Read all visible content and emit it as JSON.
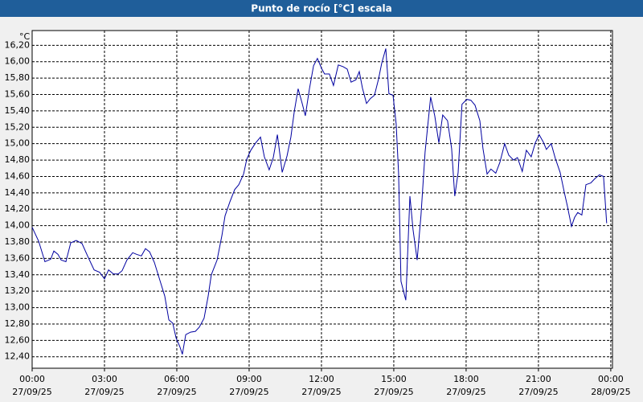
{
  "chart_data": {
    "type": "line",
    "title": "Punto de rocío [°C] escala",
    "y_label": "°C",
    "xlim": [
      0,
      24.07
    ],
    "ylim": [
      12.26,
      16.38
    ],
    "grid": true,
    "xticks": [
      {
        "value": 0,
        "label": "00:00\n27/09/25"
      },
      {
        "value": 3,
        "label": "03:00\n27/09/25"
      },
      {
        "value": 6,
        "label": "06:00\n27/09/25"
      },
      {
        "value": 9,
        "label": "09:00\n27/09/25"
      },
      {
        "value": 12,
        "label": "12:00\n27/09/25"
      },
      {
        "value": 15,
        "label": "15:00\n27/09/25"
      },
      {
        "value": 18,
        "label": "18:00\n27/09/25"
      },
      {
        "value": 21,
        "label": "21:00\n27/09/25"
      },
      {
        "value": 24,
        "label": "00:00\n28/09/25"
      }
    ],
    "yticks": [
      {
        "value": 12.4,
        "label": "12,40"
      },
      {
        "value": 12.6,
        "label": "12,60"
      },
      {
        "value": 12.8,
        "label": "12,80"
      },
      {
        "value": 13.0,
        "label": "13,00"
      },
      {
        "value": 13.2,
        "label": "13,20"
      },
      {
        "value": 13.4,
        "label": "13,40"
      },
      {
        "value": 13.6,
        "label": "13,60"
      },
      {
        "value": 13.8,
        "label": "13,80"
      },
      {
        "value": 14.0,
        "label": "14,00"
      },
      {
        "value": 14.2,
        "label": "14,20"
      },
      {
        "value": 14.4,
        "label": "14,40"
      },
      {
        "value": 14.6,
        "label": "14,60"
      },
      {
        "value": 14.8,
        "label": "14,80"
      },
      {
        "value": 15.0,
        "label": "15,00"
      },
      {
        "value": 15.2,
        "label": "15,20"
      },
      {
        "value": 15.4,
        "label": "15,40"
      },
      {
        "value": 15.6,
        "label": "15,60"
      },
      {
        "value": 15.8,
        "label": "15,80"
      },
      {
        "value": 16.0,
        "label": "16,00"
      },
      {
        "value": 16.2,
        "label": "16,20"
      }
    ],
    "x": [
      0,
      0.27,
      0.53,
      0.77,
      0.9,
      1.07,
      1.2,
      1.4,
      1.6,
      1.83,
      2.07,
      2.33,
      2.57,
      2.8,
      3,
      3.17,
      3.37,
      3.57,
      3.73,
      3.93,
      4.17,
      4.33,
      4.53,
      4.7,
      4.87,
      5.07,
      5.3,
      5.5,
      5.67,
      5.83,
      5.97,
      6.13,
      6.23,
      6.37,
      6.57,
      6.77,
      6.93,
      7.13,
      7.3,
      7.43,
      7.67,
      7.87,
      8,
      8.2,
      8.4,
      8.57,
      8.77,
      8.9,
      9.07,
      9.27,
      9.47,
      9.63,
      9.83,
      10,
      10.17,
      10.37,
      10.57,
      10.73,
      10.87,
      11.03,
      11.2,
      11.33,
      11.5,
      11.67,
      11.83,
      12,
      12.13,
      12.33,
      12.5,
      12.7,
      12.9,
      13.07,
      13.23,
      13.43,
      13.57,
      13.7,
      13.87,
      14.03,
      14.2,
      14.37,
      14.5,
      14.67,
      14.8,
      14.97,
      15.1,
      15.2,
      15.3,
      15.5,
      15.67,
      15.8,
      15.97,
      16.13,
      16.3,
      16.53,
      16.7,
      16.87,
      17.03,
      17.23,
      17.4,
      17.53,
      17.67,
      17.83,
      18.03,
      18.2,
      18.37,
      18.57,
      18.7,
      18.87,
      19.03,
      19.23,
      19.4,
      19.6,
      19.77,
      19.97,
      20.13,
      20.33,
      20.5,
      20.7,
      20.87,
      21.03,
      21.2,
      21.33,
      21.53,
      21.7,
      21.9,
      22.07,
      22.2,
      22.37,
      22.5,
      22.63,
      22.8,
      22.97,
      23.17,
      23.33,
      23.53,
      23.7,
      23.83
    ],
    "series": [
      {
        "name": "Punto de rocío",
        "color": "#0000a0",
        "values": [
          13.98,
          13.81,
          13.56,
          13.59,
          13.69,
          13.65,
          13.58,
          13.56,
          13.79,
          13.82,
          13.78,
          13.61,
          13.46,
          13.43,
          13.35,
          13.46,
          13.41,
          13.41,
          13.45,
          13.58,
          13.67,
          13.65,
          13.63,
          13.72,
          13.68,
          13.55,
          13.33,
          13.14,
          12.85,
          12.81,
          12.63,
          12.52,
          12.43,
          12.67,
          12.7,
          12.71,
          12.76,
          12.87,
          13.14,
          13.4,
          13.58,
          13.88,
          14.12,
          14.29,
          14.44,
          14.5,
          14.63,
          14.81,
          14.92,
          15.01,
          15.08,
          14.84,
          14.68,
          14.83,
          15.11,
          14.65,
          14.85,
          15.08,
          15.39,
          15.67,
          15.49,
          15.34,
          15.67,
          15.95,
          16.04,
          15.92,
          15.85,
          15.85,
          15.71,
          15.96,
          15.94,
          15.91,
          15.75,
          15.78,
          15.88,
          15.68,
          15.49,
          15.55,
          15.59,
          15.79,
          15.98,
          16.16,
          15.61,
          15.59,
          15.24,
          14.64,
          13.32,
          13.09,
          14.36,
          13.95,
          13.58,
          14.13,
          14.9,
          15.57,
          15.34,
          15.01,
          15.35,
          15.28,
          14.94,
          14.36,
          14.65,
          15.48,
          15.54,
          15.53,
          15.47,
          15.28,
          14.94,
          14.63,
          14.69,
          14.64,
          14.77,
          15,
          14.86,
          14.8,
          14.83,
          14.66,
          14.92,
          14.84,
          15.01,
          15.11,
          15.02,
          14.93,
          15,
          14.82,
          14.65,
          14.41,
          14.24,
          13.99,
          14.1,
          14.16,
          14.13,
          14.5,
          14.52,
          14.57,
          14.62,
          14.6,
          14.03
        ]
      }
    ]
  }
}
